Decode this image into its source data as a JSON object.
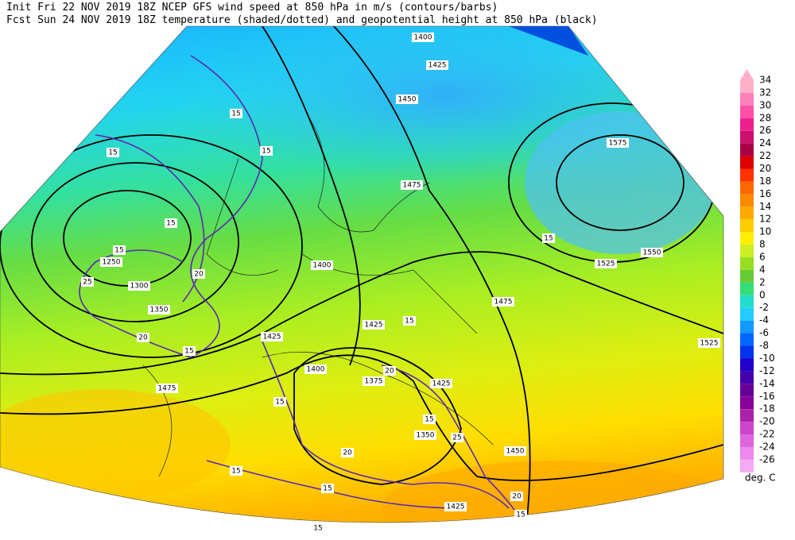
{
  "header": {
    "line1": "Init  Fri 22 NOV 2019 18Z   NCEP GFS wind speed at 850 hPa in m/s (contours/barbs)",
    "line2": "Fcst Sun 24 NOV 2019 18Z  temperature (shaded/dotted) and geopotential height at 850 hPa (black)"
  },
  "colorbar": {
    "unit": "deg. C",
    "items": [
      {
        "label": 34,
        "color": "#ffb0c8"
      },
      {
        "label": 32,
        "color": "#ff80b8"
      },
      {
        "label": 30,
        "color": "#ff50a8"
      },
      {
        "label": 28,
        "color": "#ee2090"
      },
      {
        "label": 26,
        "color": "#cc1070"
      },
      {
        "label": 24,
        "color": "#aa0044"
      },
      {
        "label": 22,
        "color": "#dd0000"
      },
      {
        "label": 20,
        "color": "#ff3300"
      },
      {
        "label": 18,
        "color": "#ff6600"
      },
      {
        "label": 16,
        "color": "#ff8800"
      },
      {
        "label": 14,
        "color": "#ffaa00"
      },
      {
        "label": 12,
        "color": "#ffcc00"
      },
      {
        "label": 10,
        "color": "#ffee00"
      },
      {
        "label": 8,
        "color": "#ccee22"
      },
      {
        "label": 6,
        "color": "#99dd22"
      },
      {
        "label": 4,
        "color": "#66cc33"
      },
      {
        "label": 2,
        "color": "#33dd77"
      },
      {
        "label": 0,
        "color": "#22ddcc"
      },
      {
        "label": -2,
        "color": "#22ccff"
      },
      {
        "label": -4,
        "color": "#1199ff"
      },
      {
        "label": -6,
        "color": "#0066ff"
      },
      {
        "label": -8,
        "color": "#0033ee"
      },
      {
        "label": -10,
        "color": "#2200cc"
      },
      {
        "label": -12,
        "color": "#4400aa"
      },
      {
        "label": -14,
        "color": "#660099"
      },
      {
        "label": -16,
        "color": "#880099"
      },
      {
        "label": -18,
        "color": "#aa22aa"
      },
      {
        "label": -20,
        "color": "#cc44cc"
      },
      {
        "label": -22,
        "color": "#dd66dd"
      },
      {
        "label": -24,
        "color": "#ee88ee"
      },
      {
        "label": -26,
        "color": "#f4aaf4"
      }
    ]
  },
  "contour_labels": [
    "1400",
    "1425",
    "1450",
    "1575",
    "1475",
    "1550",
    "1525",
    "1475",
    "1425",
    "1425",
    "1400",
    "1400",
    "1375",
    "1425",
    "1350",
    "1450",
    "1425",
    "1475",
    "1525",
    "1300",
    "1250",
    "1350",
    "15",
    "15",
    "15",
    "15",
    "15",
    "20",
    "25",
    "20",
    "15",
    "15",
    "20",
    "15",
    "15",
    "20",
    "15",
    "15",
    "20",
    "15",
    "25",
    "15",
    "15"
  ]
}
